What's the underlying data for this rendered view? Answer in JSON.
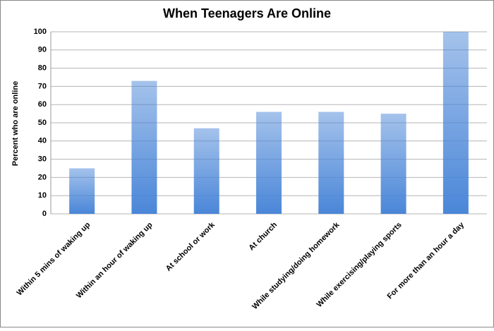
{
  "chart_data": {
    "type": "bar",
    "title": "When Teenagers Are Online",
    "y_label": "Percent who are online",
    "categories": [
      "Within 5 mins of waking up",
      "Within an hour of waking up",
      "At school or work",
      "At church",
      "While studying/doing homework",
      "While exercising/playing sports",
      "For more than an hour a day"
    ],
    "values": [
      25,
      73,
      47,
      56,
      56,
      55,
      100
    ],
    "color": "#4a86d8",
    "ylim": [
      0,
      100
    ],
    "yticks": [
      0,
      10,
      20,
      30,
      40,
      50,
      60,
      70,
      80,
      90,
      100
    ],
    "grid": true
  }
}
